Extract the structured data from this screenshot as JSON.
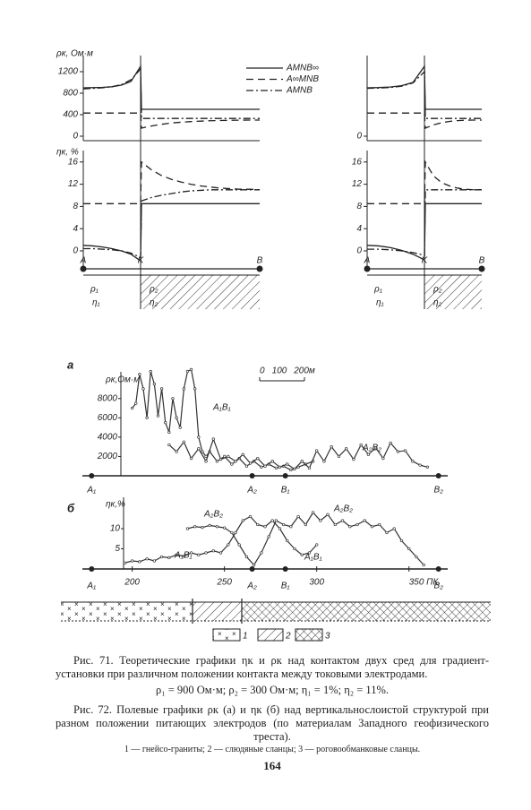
{
  "figure_71": {
    "rho_label": "ρк, Ом·м",
    "eta_label": "ηк, %",
    "series_names": [
      "AMNB∞",
      "A∞MNB",
      "AMNB"
    ],
    "series_styles": [
      "solid",
      "dashed",
      "dashdot"
    ],
    "rho_ylim": [
      -100,
      1350
    ],
    "eta_ylim": [
      -3,
      17
    ],
    "panels": [
      {
        "categories": [
          "A",
          null,
          null,
          null,
          null,
          null,
          "K",
          null,
          null,
          null,
          null,
          null,
          null,
          null,
          null,
          null,
          null,
          null,
          null,
          "B"
        ],
        "rho_yticks": [
          0,
          400,
          800,
          1200
        ],
        "eta_yticks": [
          0,
          4,
          8,
          12,
          16
        ],
        "rho_series": [
          [
            900,
            903,
            908,
            920,
            950,
            1020,
            1300,
            500,
            500,
            500,
            500,
            500,
            500,
            500,
            500,
            500,
            500,
            500,
            500,
            500
          ],
          [
            430,
            430,
            430,
            430,
            430,
            430,
            430,
            150,
            190,
            220,
            245,
            260,
            272,
            280,
            288,
            292,
            296,
            298,
            300,
            300
          ],
          [
            880,
            890,
            900,
            920,
            960,
            1050,
            1250,
            330,
            330,
            330,
            330,
            330,
            330,
            330,
            330,
            330,
            330,
            330,
            330,
            330
          ]
        ],
        "eta_series": [
          [
            1,
            0.9,
            0.7,
            0.4,
            0,
            -0.6,
            -1.8,
            8.5,
            8.5,
            8.5,
            8.5,
            8.5,
            8.5,
            8.5,
            8.5,
            8.5,
            8.5,
            8.5,
            8.5,
            8.5
          ],
          [
            8.5,
            8.5,
            8.5,
            8.5,
            8.5,
            8.5,
            8.5,
            16,
            14.6,
            13.6,
            12.9,
            12.4,
            12,
            11.7,
            11.5,
            11.3,
            11.2,
            11.1,
            11.1,
            11
          ],
          [
            0.4,
            0.4,
            0.3,
            0.2,
            0,
            -0.4,
            -1.2,
            9,
            9.6,
            10,
            10.3,
            10.6,
            10.8,
            10.9,
            11,
            11,
            11,
            11,
            11,
            11
          ]
        ],
        "region_labels": [
          "ρ₁",
          "η₁",
          "ρ₂",
          "η₂"
        ]
      },
      {
        "categories": [
          "A",
          null,
          null,
          null,
          null,
          "K",
          null,
          null,
          null,
          null,
          null,
          null,
          null,
          "B"
        ],
        "rho_yticks": [
          0
        ],
        "eta_yticks": [
          0,
          4,
          8,
          12,
          16
        ],
        "rho_series": [
          [
            900,
            905,
            915,
            940,
            1000,
            1300,
            500,
            500,
            500,
            500,
            500,
            500,
            500,
            500
          ],
          [
            430,
            430,
            430,
            430,
            430,
            430,
            150,
            210,
            250,
            275,
            290,
            298,
            300,
            300
          ],
          [
            890,
            895,
            905,
            930,
            990,
            1200,
            330,
            330,
            330,
            330,
            330,
            330,
            330,
            330
          ]
        ],
        "eta_series": [
          [
            1,
            0.9,
            0.6,
            0.1,
            -0.6,
            -1.6,
            8.5,
            8.5,
            8.5,
            8.5,
            8.5,
            8.5,
            8.5,
            8.5
          ],
          [
            8.5,
            8.5,
            8.5,
            8.5,
            8.5,
            8.5,
            16,
            13.5,
            12.3,
            11.7,
            11.3,
            11.1,
            11,
            11
          ],
          [
            0.3,
            0.3,
            0.2,
            0,
            -0.3,
            -0.8,
            11,
            11,
            11,
            11,
            11,
            11,
            11,
            11
          ]
        ],
        "region_labels": [
          "ρ₁",
          "η₁",
          "ρ₂",
          "η₂"
        ]
      }
    ]
  },
  "figure_72": {
    "xlim": [
      173,
      371
    ],
    "electrodes": [
      {
        "label": "A₁",
        "x": 178
      },
      {
        "label": "A₂",
        "x": 265
      },
      {
        "label": "B₁",
        "x": 283
      },
      {
        "label": "B₂",
        "x": 366
      }
    ],
    "panel_a": {
      "letter": "а",
      "y_label": "ρк,Ом·м",
      "ylim": [
        0,
        11500
      ],
      "yticks": [
        2000,
        4000,
        6000,
        8000
      ],
      "scale_bar": [
        "0",
        "100",
        "200м"
      ],
      "series": [
        {
          "name": "A₁B₁",
          "x": [
            200,
            202,
            204,
            206,
            208,
            210,
            212,
            214,
            216,
            218,
            220,
            222,
            224,
            226,
            228,
            230,
            232,
            234,
            236,
            238,
            240,
            242,
            246,
            250,
            254,
            258,
            262,
            266,
            270,
            274,
            278,
            282,
            286,
            290,
            294,
            298
          ],
          "values": [
            7000,
            7500,
            10500,
            9000,
            6000,
            10800,
            9500,
            6200,
            9000,
            5500,
            4500,
            8000,
            6000,
            5000,
            9000,
            10800,
            11000,
            9000,
            4000,
            2500,
            2000,
            2500,
            1500,
            2000,
            1200,
            1800,
            1000,
            1500,
            900,
            1200,
            800,
            1000,
            600,
            900,
            1200,
            1500
          ]
        },
        {
          "name": "A₂B₂",
          "x": [
            220,
            224,
            228,
            232,
            236,
            240,
            244,
            248,
            252,
            256,
            260,
            264,
            268,
            272,
            276,
            280,
            284,
            288,
            292,
            296,
            300,
            304,
            308,
            312,
            316,
            320,
            324,
            328,
            332,
            336,
            340,
            344,
            348,
            352,
            356,
            360
          ],
          "values": [
            3200,
            2500,
            3500,
            1800,
            2800,
            1500,
            3800,
            1700,
            2000,
            1500,
            2200,
            1300,
            1800,
            1000,
            1500,
            900,
            1200,
            700,
            1500,
            800,
            2600,
            1500,
            3000,
            2000,
            2800,
            1700,
            3200,
            2200,
            2900,
            1800,
            3400,
            2500,
            2600,
            1500,
            1100,
            900
          ]
        }
      ]
    },
    "panel_b": {
      "letter": "б",
      "y_label": "ηк,%",
      "ylim": [
        0,
        16
      ],
      "yticks": [
        5,
        10
      ],
      "xticks": [
        200,
        250,
        300,
        {
          "value": 350,
          "label": "350 ПК."
        }
      ],
      "series": [
        {
          "name": "A₂B₂",
          "x": [
            230,
            234,
            238,
            242,
            246,
            250,
            254,
            258,
            262,
            266,
            270,
            274,
            278,
            282,
            286,
            290,
            294,
            298,
            302,
            306,
            310,
            314,
            318,
            322,
            326,
            330,
            334,
            338,
            342,
            346,
            350,
            354,
            358
          ],
          "values": [
            10,
            10.5,
            10.3,
            10.8,
            10.5,
            10.2,
            9,
            6,
            3,
            1,
            4,
            8,
            12,
            11,
            10.5,
            13,
            11,
            14,
            12,
            13.5,
            11,
            12,
            10.5,
            11,
            12,
            10.5,
            11,
            9,
            10,
            7,
            5,
            3,
            1
          ]
        },
        {
          "name": "A₁B₁",
          "x": [
            196,
            200,
            204,
            208,
            212,
            216,
            220,
            224,
            228,
            232,
            236,
            240,
            244,
            248,
            252,
            256,
            260,
            264,
            268,
            272,
            276,
            280,
            284,
            288,
            292,
            296,
            300
          ],
          "values": [
            1.5,
            2,
            1.8,
            2.5,
            2,
            3,
            2.8,
            3.5,
            3.2,
            4,
            3.5,
            4,
            4.5,
            4,
            6,
            9,
            12,
            13,
            11,
            10.5,
            12,
            10,
            7,
            5,
            3.5,
            4,
            6
          ]
        }
      ]
    },
    "geology_legend": [
      "1",
      "2",
      "3"
    ]
  },
  "captions": {
    "fig71": "Рис. 71. Теоретические графики ηк и ρк над контактом двух сред для градиент-установки при различном положении контакта между токовыми электродами.",
    "fig71_params": "ρ₁ = 900 Ом·м; ρ₂ = 300 Ом·м; η₁ = 1%; η₂ = 11%.",
    "fig72": "Рис. 72. Полевые графики ρк (а) и ηк (б) над вертикальнослоистой структурой при разном положении питающих электродов (по материалам Западного геофизического треста).",
    "fig72_note": "1 — гнейсо-граниты; 2 — слюдяные сланцы; 3 — роговообманковые сланцы."
  },
  "page_number": "164"
}
